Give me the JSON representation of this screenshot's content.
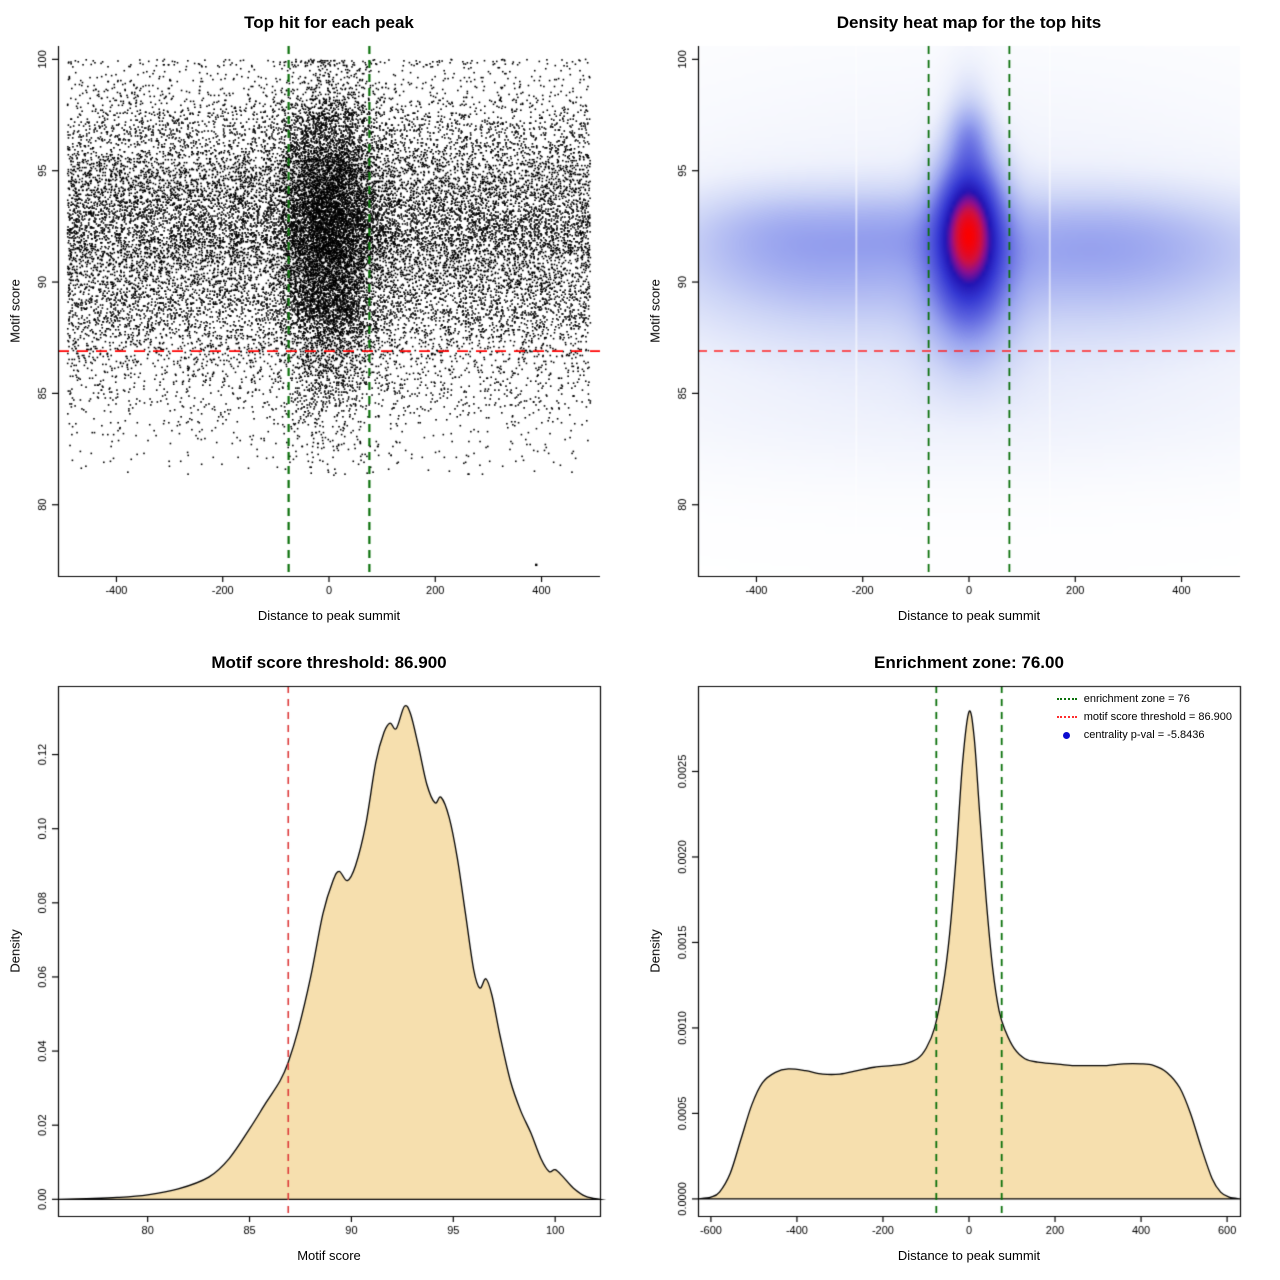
{
  "page": {
    "background": "#ffffff"
  },
  "chart_data": [
    {
      "type": "scatter",
      "title": "Top hit for each peak",
      "xlabel": "Distance to peak summit",
      "ylabel": "Motif score",
      "xlim": [
        -510,
        510
      ],
      "ylim": [
        76.8,
        100.6
      ],
      "xticks": [
        -400,
        -200,
        0,
        200,
        400
      ],
      "xtick_labels": [
        "-400",
        "-200",
        "0",
        "200",
        "400"
      ],
      "yticks": [
        80,
        85,
        90,
        95,
        100
      ],
      "ytick_labels": [
        "80",
        "85",
        "90",
        "95",
        "100"
      ],
      "box": false,
      "grid": false,
      "point_color": "#000000",
      "scatter": {
        "n_points": 26000,
        "seed": 7,
        "x_background": "uniform",
        "x_uniform_range": [
          -492,
          492
        ],
        "central_fraction": 0.3,
        "central_sigma": 48,
        "y_distribution": "sampled from motif score density curve (panel 3)",
        "outliers": [
          [
            390,
            77.3
          ]
        ]
      },
      "lines": [
        {
          "y": 86.9,
          "color": "#ff0000",
          "dash": [
            11,
            8
          ],
          "width": 1.8
        },
        {
          "x": -76,
          "color": "#0a700a",
          "dash": [
            8,
            6
          ],
          "width": 2.2
        },
        {
          "x": 76,
          "color": "#0a700a",
          "dash": [
            8,
            6
          ],
          "width": 2.2
        }
      ]
    },
    {
      "type": "heatmap",
      "title": "Density heat map for the top hits",
      "xlabel": "Distance to peak summit",
      "ylabel": "Motif score",
      "xlim": [
        -510,
        510
      ],
      "ylim": [
        76.8,
        100.6
      ],
      "xticks": [
        -400,
        -200,
        0,
        200,
        400
      ],
      "xtick_labels": [
        "-400",
        "-200",
        "0",
        "200",
        "400"
      ],
      "yticks": [
        80,
        85,
        90,
        95,
        100
      ],
      "ytick_labels": [
        "80",
        "85",
        "90",
        "95",
        "100"
      ],
      "box": false,
      "gamma": 0.7,
      "colormap": [
        [
          0,
          "#ffffff"
        ],
        [
          0.1,
          "#eef1fc"
        ],
        [
          0.22,
          "#ccd4f6"
        ],
        [
          0.38,
          "#9aa5ef"
        ],
        [
          0.54,
          "#5f66e0"
        ],
        [
          0.68,
          "#3437d2"
        ],
        [
          0.79,
          "#2214b4"
        ],
        [
          0.87,
          "#8d0f8f"
        ],
        [
          0.93,
          "#d01040"
        ],
        [
          1,
          "#fb0000"
        ]
      ],
      "kernels": [
        {
          "x": 0,
          "y": 92.8,
          "sx": 42,
          "sy": 1.7,
          "w": 1.0
        },
        {
          "x": 0,
          "y": 91.2,
          "sx": 46,
          "sy": 1.8,
          "w": 0.85
        },
        {
          "x": 0,
          "y": 94.6,
          "sx": 40,
          "sy": 1.5,
          "w": 0.5
        },
        {
          "x": 0,
          "y": 96.6,
          "sx": 26,
          "sy": 1.0,
          "w": 0.42
        },
        {
          "x": 0,
          "y": 89.2,
          "sx": 55,
          "sy": 1.6,
          "w": 0.38
        },
        {
          "x": 0,
          "y": 87.0,
          "sx": 60,
          "sy": 1.6,
          "w": 0.16
        },
        {
          "x": 0,
          "y": 98.6,
          "sx": 30,
          "sy": 1.3,
          "w": 0.1
        },
        {
          "x": -340,
          "y": 92.4,
          "sx": 130,
          "sy": 1.25,
          "w": 0.3
        },
        {
          "x": -120,
          "y": 92.4,
          "sx": 90,
          "sy": 1.25,
          "w": 0.2
        },
        {
          "x": 260,
          "y": 92.2,
          "sx": 190,
          "sy": 1.35,
          "w": 0.26
        },
        {
          "x": 0,
          "y": 92.3,
          "sx": 520,
          "sy": 1.6,
          "w": 0.1
        },
        {
          "x": -310,
          "y": 90.6,
          "sx": 160,
          "sy": 1.25,
          "w": 0.17
        },
        {
          "x": 230,
          "y": 90.8,
          "sx": 240,
          "sy": 1.35,
          "w": 0.15
        },
        {
          "x": 0,
          "y": 90.7,
          "sx": 520,
          "sy": 1.5,
          "w": 0.07
        },
        {
          "x": -260,
          "y": 88.9,
          "sx": 200,
          "sy": 1.5,
          "w": 0.12
        },
        {
          "x": 300,
          "y": 89.0,
          "sx": 200,
          "sy": 1.5,
          "w": 0.11
        },
        {
          "x": 0,
          "y": 88.9,
          "sx": 520,
          "sy": 1.8,
          "w": 0.05
        },
        {
          "x": 0,
          "y": 91.8,
          "sx": 460,
          "sy": 4.8,
          "w": 0.09
        },
        {
          "x": 0,
          "y": 85.8,
          "sx": 470,
          "sy": 2.2,
          "w": 0.05
        },
        {
          "x": 0,
          "y": 83.8,
          "sx": 430,
          "sy": 1.8,
          "w": 0.035
        }
      ],
      "white_stripes": [
        -212,
        152
      ],
      "lines": [
        {
          "y": 86.9,
          "color": "#ff2020",
          "dash": [
            9,
            7
          ],
          "width": 1.5
        },
        {
          "x": -76,
          "color": "#0a700a",
          "dash": [
            8,
            6
          ],
          "width": 1.8
        },
        {
          "x": 76,
          "color": "#0a700a",
          "dash": [
            8,
            6
          ],
          "width": 1.8
        }
      ]
    },
    {
      "type": "density",
      "title": "Motif score threshold: 86.900",
      "xlabel": "Motif score",
      "ylabel": "Density",
      "xlim": [
        75.6,
        102.2
      ],
      "ylim": [
        -0.0045,
        0.1385
      ],
      "xticks": [
        80,
        85,
        90,
        95,
        100
      ],
      "xtick_labels": [
        "80",
        "85",
        "90",
        "95",
        "100"
      ],
      "yticks": [
        0,
        0.02,
        0.04,
        0.06,
        0.08,
        0.1,
        0.12
      ],
      "ytick_labels": [
        "0.00",
        "0.02",
        "0.04",
        "0.06",
        "0.08",
        "0.10",
        "0.12"
      ],
      "box": true,
      "fill": "#f6dfae",
      "line_color": "#000000",
      "curve": {
        "x": [
          75.6,
          77,
          78.5,
          80,
          81.5,
          83,
          84,
          85,
          85.8,
          86.5,
          86.9,
          87.4,
          88,
          88.6,
          89.1,
          89.4,
          89.8,
          90.2,
          90.7,
          91.2,
          91.6,
          91.9,
          92.2,
          92.6,
          92.9,
          93.3,
          93.7,
          94.1,
          94.4,
          94.8,
          95.2,
          95.6,
          96,
          96.3,
          96.6,
          96.9,
          97.3,
          97.8,
          98.3,
          98.8,
          99.3,
          99.7,
          100,
          100.4,
          100.9,
          101.5,
          102.2
        ],
        "y": [
          0,
          0.0002,
          0.0005,
          0.0012,
          0.0028,
          0.006,
          0.011,
          0.019,
          0.026,
          0.032,
          0.037,
          0.046,
          0.06,
          0.077,
          0.086,
          0.0885,
          0.086,
          0.09,
          0.101,
          0.118,
          0.126,
          0.1285,
          0.127,
          0.133,
          0.131,
          0.122,
          0.112,
          0.107,
          0.1085,
          0.103,
          0.092,
          0.077,
          0.062,
          0.057,
          0.0595,
          0.055,
          0.044,
          0.032,
          0.024,
          0.018,
          0.011,
          0.0075,
          0.008,
          0.006,
          0.003,
          0.0008,
          0
        ]
      },
      "lines": [
        {
          "x": 86.9,
          "color": "#dd3a3a",
          "dash": [
            7,
            6
          ],
          "width": 1.6
        }
      ]
    },
    {
      "type": "density",
      "title": "Enrichment zone: 76.00",
      "xlabel": "Distance to peak summit",
      "ylabel": "Density",
      "xlim": [
        -630,
        630
      ],
      "ylim": [
        -0.0001,
        0.003
      ],
      "xticks": [
        -600,
        -400,
        -200,
        0,
        200,
        400,
        600
      ],
      "xtick_labels": [
        "-600",
        "-400",
        "-200",
        "0",
        "200",
        "400",
        "600"
      ],
      "yticks": [
        0,
        0.0005,
        0.001,
        0.0015,
        0.002,
        0.0025
      ],
      "ytick_labels": [
        "0.0000",
        "0.0005",
        "0.0010",
        "0.0015",
        "0.0020",
        "0.0025"
      ],
      "box": true,
      "fill": "#f6dfae",
      "line_color": "#000000",
      "curve": {
        "x": [
          -630,
          -600,
          -580,
          -555,
          -530,
          -505,
          -480,
          -450,
          -420,
          -380,
          -340,
          -300,
          -260,
          -220,
          -180,
          -150,
          -120,
          -100,
          -80,
          -60,
          -45,
          -30,
          -15,
          0,
          12,
          25,
          40,
          55,
          70,
          85,
          105,
          130,
          160,
          200,
          240,
          280,
          320,
          360,
          400,
          430,
          460,
          490,
          515,
          540,
          565,
          585,
          605,
          630
        ],
        "y": [
          0,
          1e-05,
          4e-05,
          0.00015,
          0.00035,
          0.00055,
          0.00068,
          0.00074,
          0.00076,
          0.00075,
          0.00073,
          0.00073,
          0.00075,
          0.00077,
          0.00078,
          0.00079,
          0.00082,
          0.00088,
          0.001,
          0.00125,
          0.00155,
          0.002,
          0.00255,
          0.00285,
          0.0027,
          0.00225,
          0.00175,
          0.00135,
          0.0011,
          0.00098,
          0.00088,
          0.00082,
          0.0008,
          0.00079,
          0.00078,
          0.00078,
          0.00078,
          0.00079,
          0.00079,
          0.00078,
          0.00074,
          0.00065,
          0.0005,
          0.0003,
          0.00012,
          4e-05,
          1e-05,
          0
        ]
      },
      "lines": [
        {
          "x": -76,
          "color": "#0a700a",
          "dash": [
            7,
            6
          ],
          "width": 1.8
        },
        {
          "x": 76,
          "color": "#0a700a",
          "dash": [
            7,
            6
          ],
          "width": 1.8
        }
      ],
      "legend": {
        "items": [
          {
            "label": "enrichment zone = 76",
            "type": "dotted-line",
            "color": "#0a700a"
          },
          {
            "label": "motif score threshold = 86.900",
            "type": "dotted-line",
            "color": "#ff2d2d"
          },
          {
            "label": "centrality p-val = -5.8436",
            "type": "point",
            "color": "#0a0ad0"
          }
        ]
      }
    }
  ]
}
